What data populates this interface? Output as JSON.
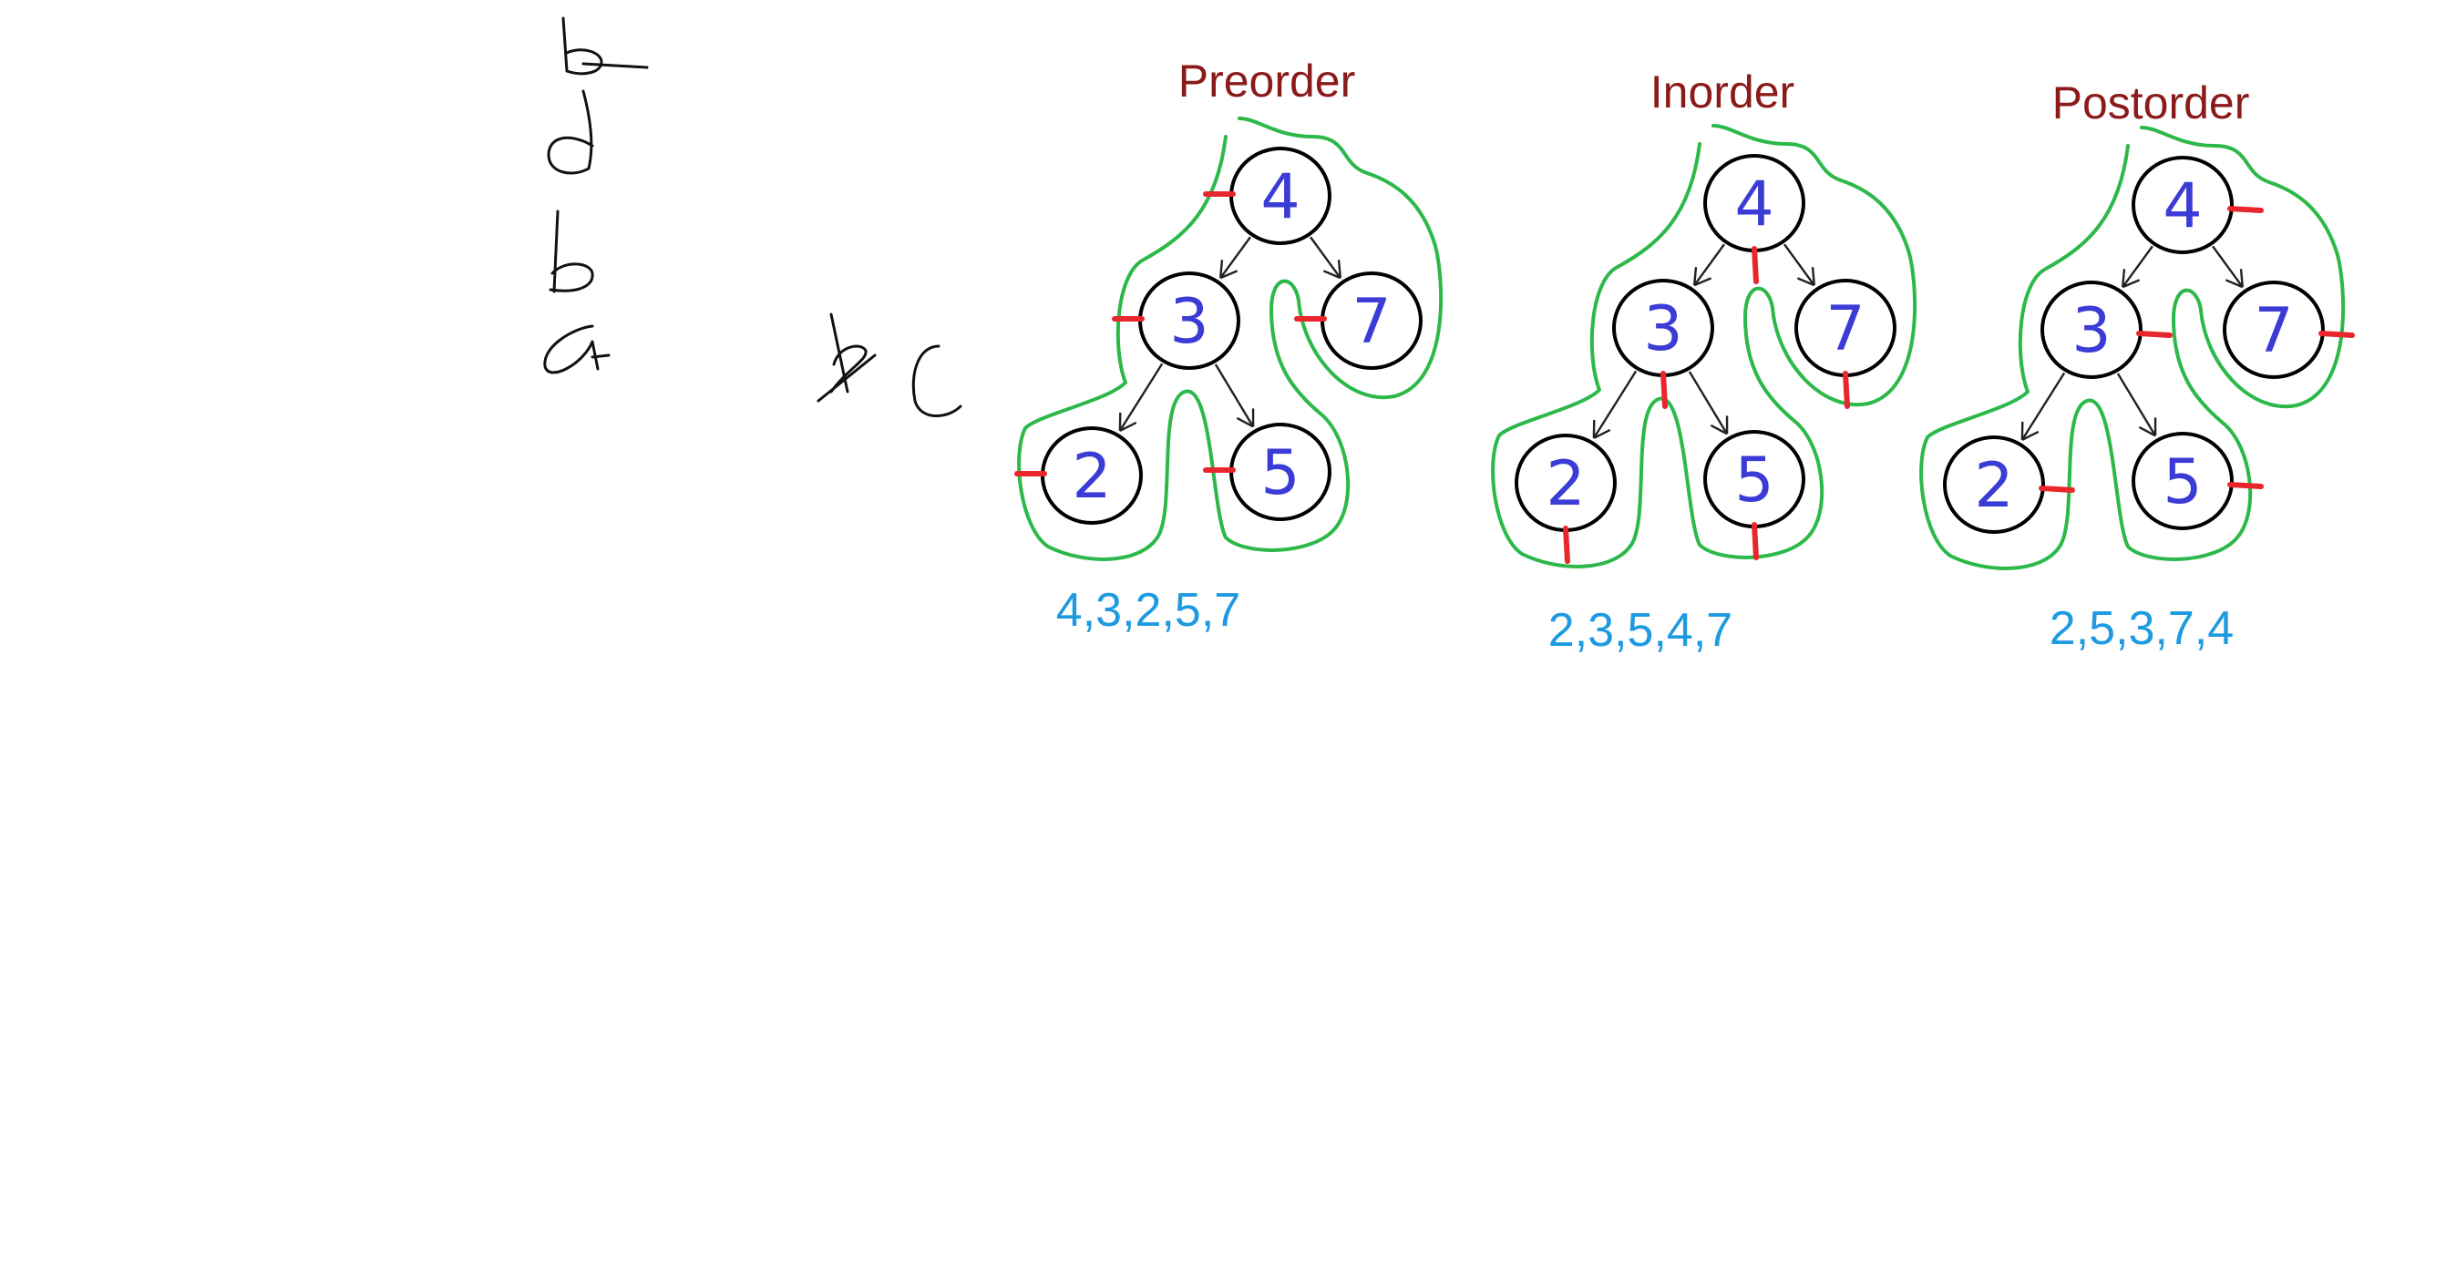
{
  "diagrams": [
    {
      "title": "Preorder",
      "sequence": "4,3,2,5,7",
      "nodes": [
        "4",
        "3",
        "7",
        "2",
        "5"
      ]
    },
    {
      "title": "Inorder",
      "sequence": "2,3,5,4,7",
      "nodes": [
        "4",
        "3",
        "7",
        "2",
        "5"
      ]
    },
    {
      "title": "Postorder",
      "sequence": "2,5,3,7,4",
      "nodes": [
        "4",
        "3",
        "7",
        "2",
        "5"
      ]
    }
  ],
  "colors": {
    "title": "#8b1a1a",
    "result": "#1e9ae0",
    "node_label": "#3b3bd6",
    "contour": "#2db84a",
    "visit_tick": "#e8262c"
  }
}
